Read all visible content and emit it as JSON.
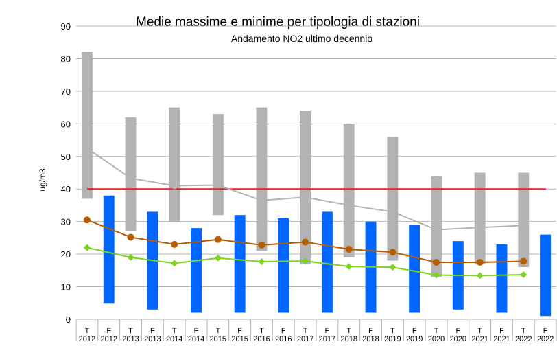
{
  "chart_data": {
    "type": "bar",
    "title": "Medie massime e minime per tipologia di stazioni",
    "subtitle": "Andamento NO2 ultimo decennio",
    "ylabel": "ug/m3",
    "ylim": [
      0,
      90
    ],
    "yticks": [
      0,
      10,
      20,
      30,
      40,
      50,
      60,
      70,
      80,
      90
    ],
    "grid": true,
    "categories": [
      {
        "type": "T",
        "year": "2012"
      },
      {
        "type": "F",
        "year": "2012"
      },
      {
        "type": "T",
        "year": "2013"
      },
      {
        "type": "F",
        "year": "2013"
      },
      {
        "type": "T",
        "year": "2014"
      },
      {
        "type": "F",
        "year": "2014"
      },
      {
        "type": "T",
        "year": "2015"
      },
      {
        "type": "F",
        "year": "2015"
      },
      {
        "type": "T",
        "year": "2016"
      },
      {
        "type": "F",
        "year": "2016"
      },
      {
        "type": "T",
        "year": "2017"
      },
      {
        "type": "F",
        "year": "2017"
      },
      {
        "type": "T",
        "year": "2018"
      },
      {
        "type": "F",
        "year": "2018"
      },
      {
        "type": "T",
        "year": "2019"
      },
      {
        "type": "F",
        "year": "2019"
      },
      {
        "type": "T",
        "year": "2020"
      },
      {
        "type": "F",
        "year": "2020"
      },
      {
        "type": "T",
        "year": "2021"
      },
      {
        "type": "F",
        "year": "2021"
      },
      {
        "type": "T",
        "year": "2022"
      },
      {
        "type": "F",
        "year": "2022"
      }
    ],
    "range_bars": [
      {
        "cat": 0,
        "min": 37,
        "max": 82,
        "color": "#b3b3b3"
      },
      {
        "cat": 1,
        "min": 5,
        "max": 38,
        "color": "#0066ff"
      },
      {
        "cat": 2,
        "min": 27,
        "max": 62,
        "color": "#b3b3b3"
      },
      {
        "cat": 3,
        "min": 3,
        "max": 33,
        "color": "#0066ff"
      },
      {
        "cat": 4,
        "min": 30,
        "max": 65,
        "color": "#b3b3b3"
      },
      {
        "cat": 5,
        "min": 2,
        "max": 28,
        "color": "#0066ff"
      },
      {
        "cat": 6,
        "min": 32,
        "max": 63,
        "color": "#b3b3b3"
      },
      {
        "cat": 7,
        "min": 2,
        "max": 32,
        "color": "#0066ff"
      },
      {
        "cat": 8,
        "min": 21,
        "max": 65,
        "color": "#b3b3b3"
      },
      {
        "cat": 9,
        "min": 2,
        "max": 31,
        "color": "#0066ff"
      },
      {
        "cat": 10,
        "min": 17,
        "max": 64,
        "color": "#b3b3b3"
      },
      {
        "cat": 11,
        "min": 2,
        "max": 33,
        "color": "#0066ff"
      },
      {
        "cat": 12,
        "min": 19,
        "max": 60,
        "color": "#b3b3b3"
      },
      {
        "cat": 13,
        "min": 2,
        "max": 30,
        "color": "#0066ff"
      },
      {
        "cat": 14,
        "min": 18,
        "max": 56,
        "color": "#b3b3b3"
      },
      {
        "cat": 15,
        "min": 2,
        "max": 29,
        "color": "#0066ff"
      },
      {
        "cat": 16,
        "min": 13,
        "max": 44,
        "color": "#b3b3b3"
      },
      {
        "cat": 17,
        "min": 3,
        "max": 24,
        "color": "#0066ff"
      },
      {
        "cat": 18,
        "min": 17,
        "max": 45,
        "color": "#b3b3b3"
      },
      {
        "cat": 19,
        "min": 2,
        "max": 23,
        "color": "#0066ff"
      },
      {
        "cat": 20,
        "min": 16,
        "max": 45,
        "color": "#b3b3b3"
      },
      {
        "cat": 21,
        "min": 1,
        "max": 26,
        "color": "#0066ff"
      }
    ],
    "series": [
      {
        "color": "#b3b3b3",
        "marker": "circle",
        "x": [
          0,
          2,
          4,
          6,
          8,
          10,
          12,
          14,
          16,
          18,
          20
        ],
        "values": [
          52.5,
          43.3,
          41,
          41.2,
          36.5,
          37.5,
          35,
          33,
          27.5,
          28.2,
          28.8
        ]
      },
      {
        "color": "#b85c00",
        "marker": "circle",
        "x": [
          0,
          2,
          4,
          6,
          8,
          10,
          12,
          14,
          16,
          18,
          20
        ],
        "values": [
          30.5,
          25.2,
          23,
          24.5,
          22.8,
          23.7,
          21.5,
          20.6,
          17.5,
          17.5,
          17.8
        ]
      },
      {
        "color": "#7ed321",
        "marker": "diamond",
        "x": [
          0,
          2,
          4,
          6,
          8,
          10,
          12,
          14,
          16,
          18,
          20
        ],
        "values": [
          22,
          19,
          17.2,
          18.8,
          17.7,
          17.9,
          16.2,
          16,
          13.6,
          13.4,
          13.7
        ]
      }
    ],
    "reference_line": {
      "value": 40,
      "color": "#e0281e"
    }
  }
}
